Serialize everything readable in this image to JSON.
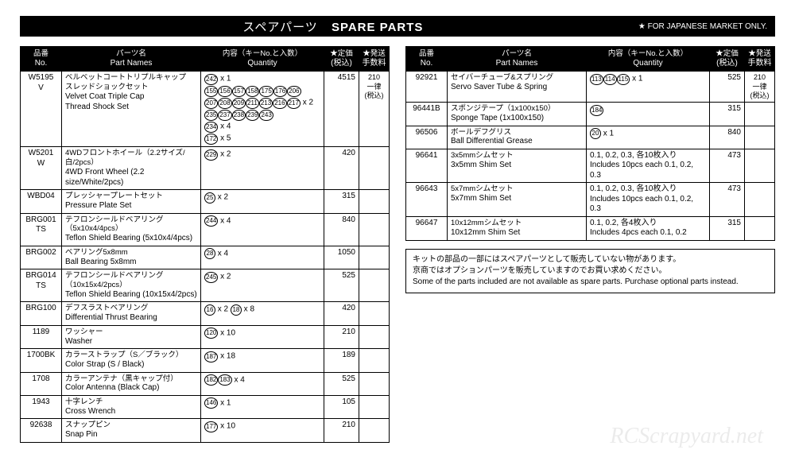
{
  "header": {
    "jp": "スペアパーツ",
    "en": "SPARE PARTS",
    "note": "★ FOR JAPANESE MARKET ONLY."
  },
  "columns": {
    "no_jp": "品番",
    "no_en": "No.",
    "name_jp": "パーツ名",
    "name_en": "Part Names",
    "qty_jp": "内容（キーNo.と入数）",
    "qty_en": "Quantity",
    "price_jp": "★定価",
    "price_en": "(税込)",
    "ship_jp": "★発送",
    "ship_en": "手数料"
  },
  "left": [
    {
      "no": "W5195\nV",
      "name_jp": "ベルベットコートトリプルキャップ\nスレッドショックセット",
      "name_en": "Velvet Coat Triple Cap\nThread Shock Set",
      "qty_lines": [
        {
          "nums": [
            "242"
          ],
          "suffix": " x 1"
        },
        {
          "nums": [
            "155",
            "156",
            "157",
            "158",
            "175",
            "176",
            "206"
          ],
          "suffix": ""
        },
        {
          "nums": [
            "207",
            "208",
            "209",
            "211",
            "213",
            "216",
            "217"
          ],
          "suffix": " x 2"
        },
        {
          "nums": [
            "235",
            "237",
            "238",
            "239",
            "243"
          ],
          "suffix": ""
        },
        {
          "nums": [
            "234"
          ],
          "suffix": " x 4"
        },
        {
          "nums": [
            "172"
          ],
          "suffix": " x 5"
        }
      ],
      "price": "4515",
      "ship": "210\n一律\n(税込)"
    },
    {
      "no": "W5201\nW",
      "name_jp": "4WDフロントホイール（2.2サイズ/白/2pcs）",
      "name_en": "4WD Front Wheel (2.2 size/White/2pcs)",
      "qty_lines": [
        {
          "nums": [
            "229"
          ],
          "suffix": " x 2"
        }
      ],
      "price": "420",
      "ship": ""
    },
    {
      "no": "WBD04",
      "name_jp": "プレッシャープレートセット",
      "name_en": "Pressure Plate Set",
      "qty_lines": [
        {
          "nums": [
            "25"
          ],
          "suffix": " x 2"
        }
      ],
      "price": "315",
      "ship": ""
    },
    {
      "no": "BRG001\nTS",
      "name_jp": "テフロンシールドベアリング（5x10x4/4pcs）",
      "name_en": "Teflon Shield Bearing (5x10x4/4pcs)",
      "qty_lines": [
        {
          "nums": [
            "244"
          ],
          "suffix": " x 4"
        }
      ],
      "price": "840",
      "ship": ""
    },
    {
      "no": "BRG002",
      "name_jp": "ベアリング5x8mm",
      "name_en": "Ball Bearing 5x8mm",
      "qty_lines": [
        {
          "nums": [
            "28"
          ],
          "suffix": " x 4"
        }
      ],
      "price": "1050",
      "ship": ""
    },
    {
      "no": "BRG014\nTS",
      "name_jp": "テフロンシールドベアリング（10x15x4/2pcs）",
      "name_en": "Teflon Shield Bearing (10x15x4/2pcs)",
      "qty_lines": [
        {
          "nums": [
            "245"
          ],
          "suffix": " x 2"
        }
      ],
      "price": "525",
      "ship": ""
    },
    {
      "no": "BRG100",
      "name_jp": "デフスラストベアリング",
      "name_en": "Differential Thrust Bearing",
      "qty_lines": [
        {
          "nums": [
            "16"
          ],
          "suffix": " x 2  "
        },
        {
          "nums": [
            "18"
          ],
          "suffix": " x 8",
          "inline": true
        }
      ],
      "price": "420",
      "ship": ""
    },
    {
      "no": "1189",
      "name_jp": "ワッシャー",
      "name_en": "Washer",
      "qty_lines": [
        {
          "nums": [
            "120"
          ],
          "suffix": " x 10"
        }
      ],
      "price": "210",
      "ship": ""
    },
    {
      "no": "1700BK",
      "name_jp": "カラーストラップ（S／ブラック）",
      "name_en": "Color Strap (S / Black)",
      "qty_lines": [
        {
          "nums": [
            "187"
          ],
          "suffix": " x 18"
        }
      ],
      "price": "189",
      "ship": ""
    },
    {
      "no": "1708",
      "name_jp": "カラーアンテナ（黒キャップ付）",
      "name_en": "Color Antenna (Black Cap)",
      "qty_lines": [
        {
          "nums": [
            "182",
            "183"
          ],
          "suffix": " x 4"
        }
      ],
      "price": "525",
      "ship": ""
    },
    {
      "no": "1943",
      "name_jp": "十字レンチ",
      "name_en": "Cross Wrench",
      "qty_lines": [
        {
          "nums": [
            "146"
          ],
          "suffix": " x 1"
        }
      ],
      "price": "105",
      "ship": ""
    },
    {
      "no": "92638",
      "name_jp": "スナップピン",
      "name_en": "Snap Pin",
      "qty_lines": [
        {
          "nums": [
            "177"
          ],
          "suffix": " x 10"
        }
      ],
      "price": "210",
      "ship": ""
    }
  ],
  "right": [
    {
      "no": "92921",
      "name_jp": "セイバーチューブ&スプリング",
      "name_en": "Servo Saver Tube & Spring",
      "qty_lines": [
        {
          "nums": [
            "113",
            "114",
            "115"
          ],
          "suffix": " x 1"
        }
      ],
      "price": "525",
      "ship": "210\n一律\n(税込)"
    },
    {
      "no": "96441B",
      "name_jp": "スポンジテープ（1x100x150）",
      "name_en": "Sponge Tape (1x100x150)",
      "qty_lines": [
        {
          "nums": [
            "184"
          ],
          "suffix": ""
        }
      ],
      "price": "315",
      "ship": ""
    },
    {
      "no": "96506",
      "name_jp": "ボールデフグリス",
      "name_en": "Ball Differential Grease",
      "qty_lines": [
        {
          "nums": [
            "20"
          ],
          "suffix": " x 1"
        }
      ],
      "price": "840",
      "ship": ""
    },
    {
      "no": "96641",
      "name_jp": "3x5mmシムセット",
      "name_en": "3x5mm Shim Set",
      "qty_text": "0.1, 0.2, 0.3, 各10枚入り\nIncludes 10pcs each 0.1, 0.2, 0.3",
      "price": "473",
      "ship": ""
    },
    {
      "no": "96643",
      "name_jp": "5x7mmシムセット",
      "name_en": "5x7mm Shim Set",
      "qty_text": "0.1, 0.2, 0.3, 各10枚入り\nIncludes 10pcs each 0.1, 0.2, 0.3",
      "price": "473",
      "ship": ""
    },
    {
      "no": "96647",
      "name_jp": "10x12mmシムセット",
      "name_en": "10x12mm Shim Set",
      "qty_text": "0.1, 0.2, 各4枚入り\nIncludes 4pcs each 0.1, 0.2",
      "price": "315",
      "ship": ""
    }
  ],
  "note": {
    "jp1": "キットの部品の一部にはスペアパーツとして販売していない物があります。",
    "jp2": "京商ではオプションパーツを販売していますのでお買い求めください。",
    "en": "Some of the parts included are not available as spare parts.  Purchase optional parts instead."
  },
  "watermark": "RCScrapyard.net"
}
